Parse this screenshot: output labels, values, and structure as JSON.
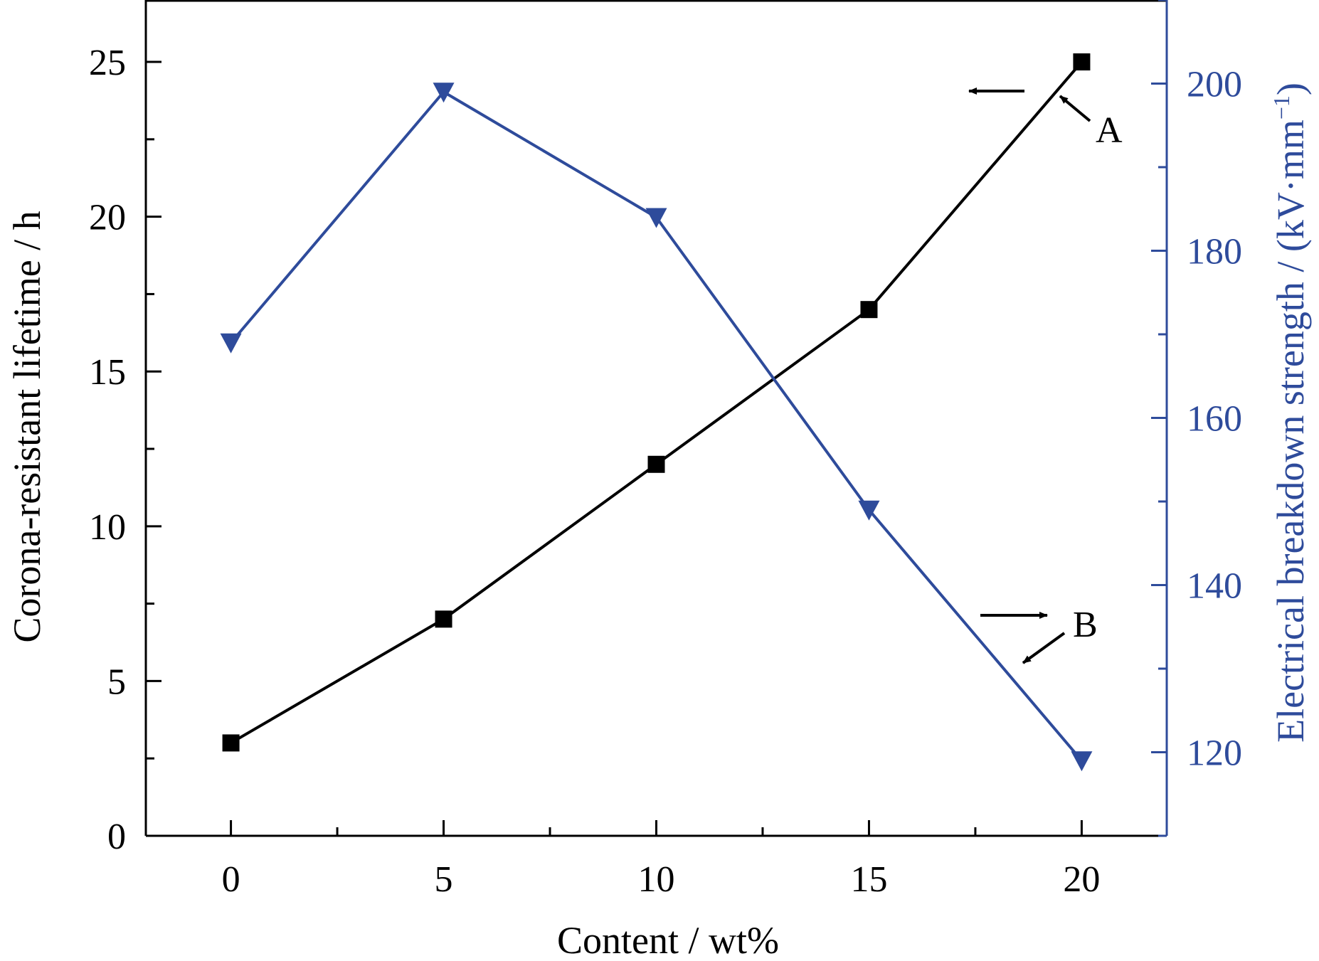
{
  "chart_data": {
    "type": "line",
    "xlabel": "Content / wt%",
    "ylabel_left": "Corona-resistant lifetime / h",
    "ylabel_right_main": "Electrical breakdown strength / (kV·mm",
    "ylabel_right_sup": "−1",
    "ylabel_right_close": ")",
    "x_ticks": [
      0,
      5,
      10,
      15,
      20
    ],
    "x_tick_labels": [
      "0",
      "5",
      "10",
      "15",
      "20"
    ],
    "xlim": [
      -2,
      22
    ],
    "y_left_ticks": [
      0,
      5,
      10,
      15,
      20,
      25
    ],
    "y_left_tick_labels": [
      "0",
      "5",
      "10",
      "15",
      "20",
      "25"
    ],
    "ylim_left": [
      0,
      27
    ],
    "y_right_ticks": [
      120,
      140,
      160,
      180,
      200
    ],
    "y_right_tick_labels": [
      "120",
      "140",
      "160",
      "180",
      "200"
    ],
    "ylim_right": [
      110,
      210
    ],
    "series": [
      {
        "axis": "left",
        "marker": "square",
        "color": "#000000",
        "x": [
          0,
          5,
          10,
          15,
          20
        ],
        "values": [
          3,
          7,
          12,
          17,
          25
        ]
      },
      {
        "axis": "right",
        "marker": "triangle-down",
        "color": "#2e4b9b",
        "x": [
          0,
          5,
          10,
          15,
          20
        ],
        "values": [
          169,
          199,
          184,
          149,
          119
        ]
      }
    ],
    "annotations": [
      {
        "text": "A",
        "points_to_series": 0
      },
      {
        "text": "B",
        "points_to_series": 1
      }
    ]
  }
}
